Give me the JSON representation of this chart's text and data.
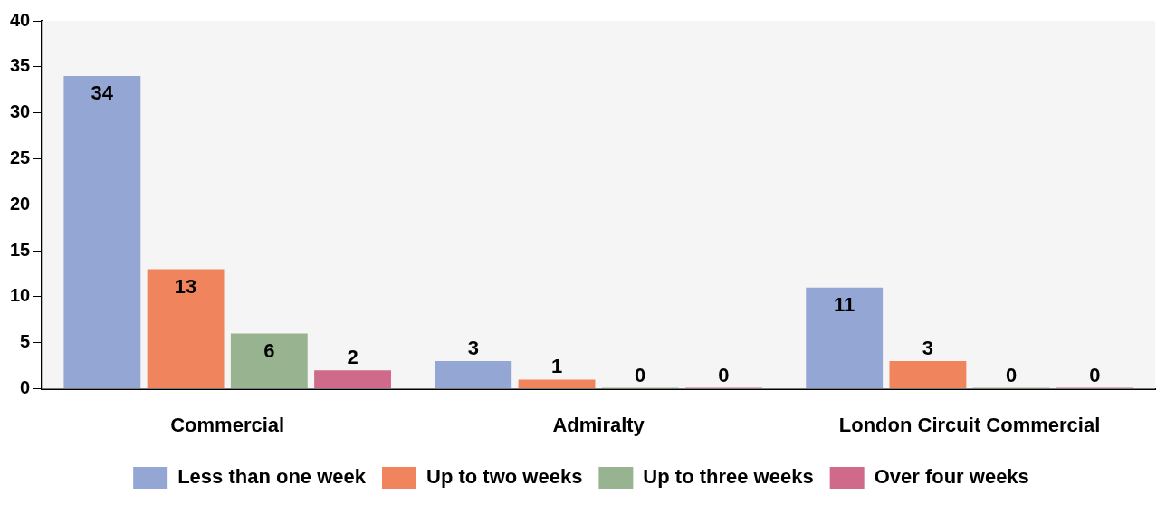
{
  "chart_data": {
    "type": "bar",
    "categories": [
      "Commercial",
      "Admiralty",
      "London Circuit Commercial"
    ],
    "series": [
      {
        "name": "Less than one week",
        "color": "#94a6d4",
        "values": [
          34,
          3,
          11
        ]
      },
      {
        "name": "Up to two weeks",
        "color": "#f0845c",
        "values": [
          13,
          1,
          3
        ]
      },
      {
        "name": "Up to three weeks",
        "color": "#97b38f",
        "values": [
          6,
          0,
          0
        ]
      },
      {
        "name": "Over four weeks",
        "color": "#cf6a8a",
        "values": [
          2,
          0,
          0
        ]
      }
    ],
    "ylim": [
      0,
      40
    ],
    "yticks": [
      0,
      5,
      10,
      15,
      20,
      25,
      30,
      35,
      40
    ],
    "grid": false,
    "legend": "bottom",
    "data_labels": true
  }
}
